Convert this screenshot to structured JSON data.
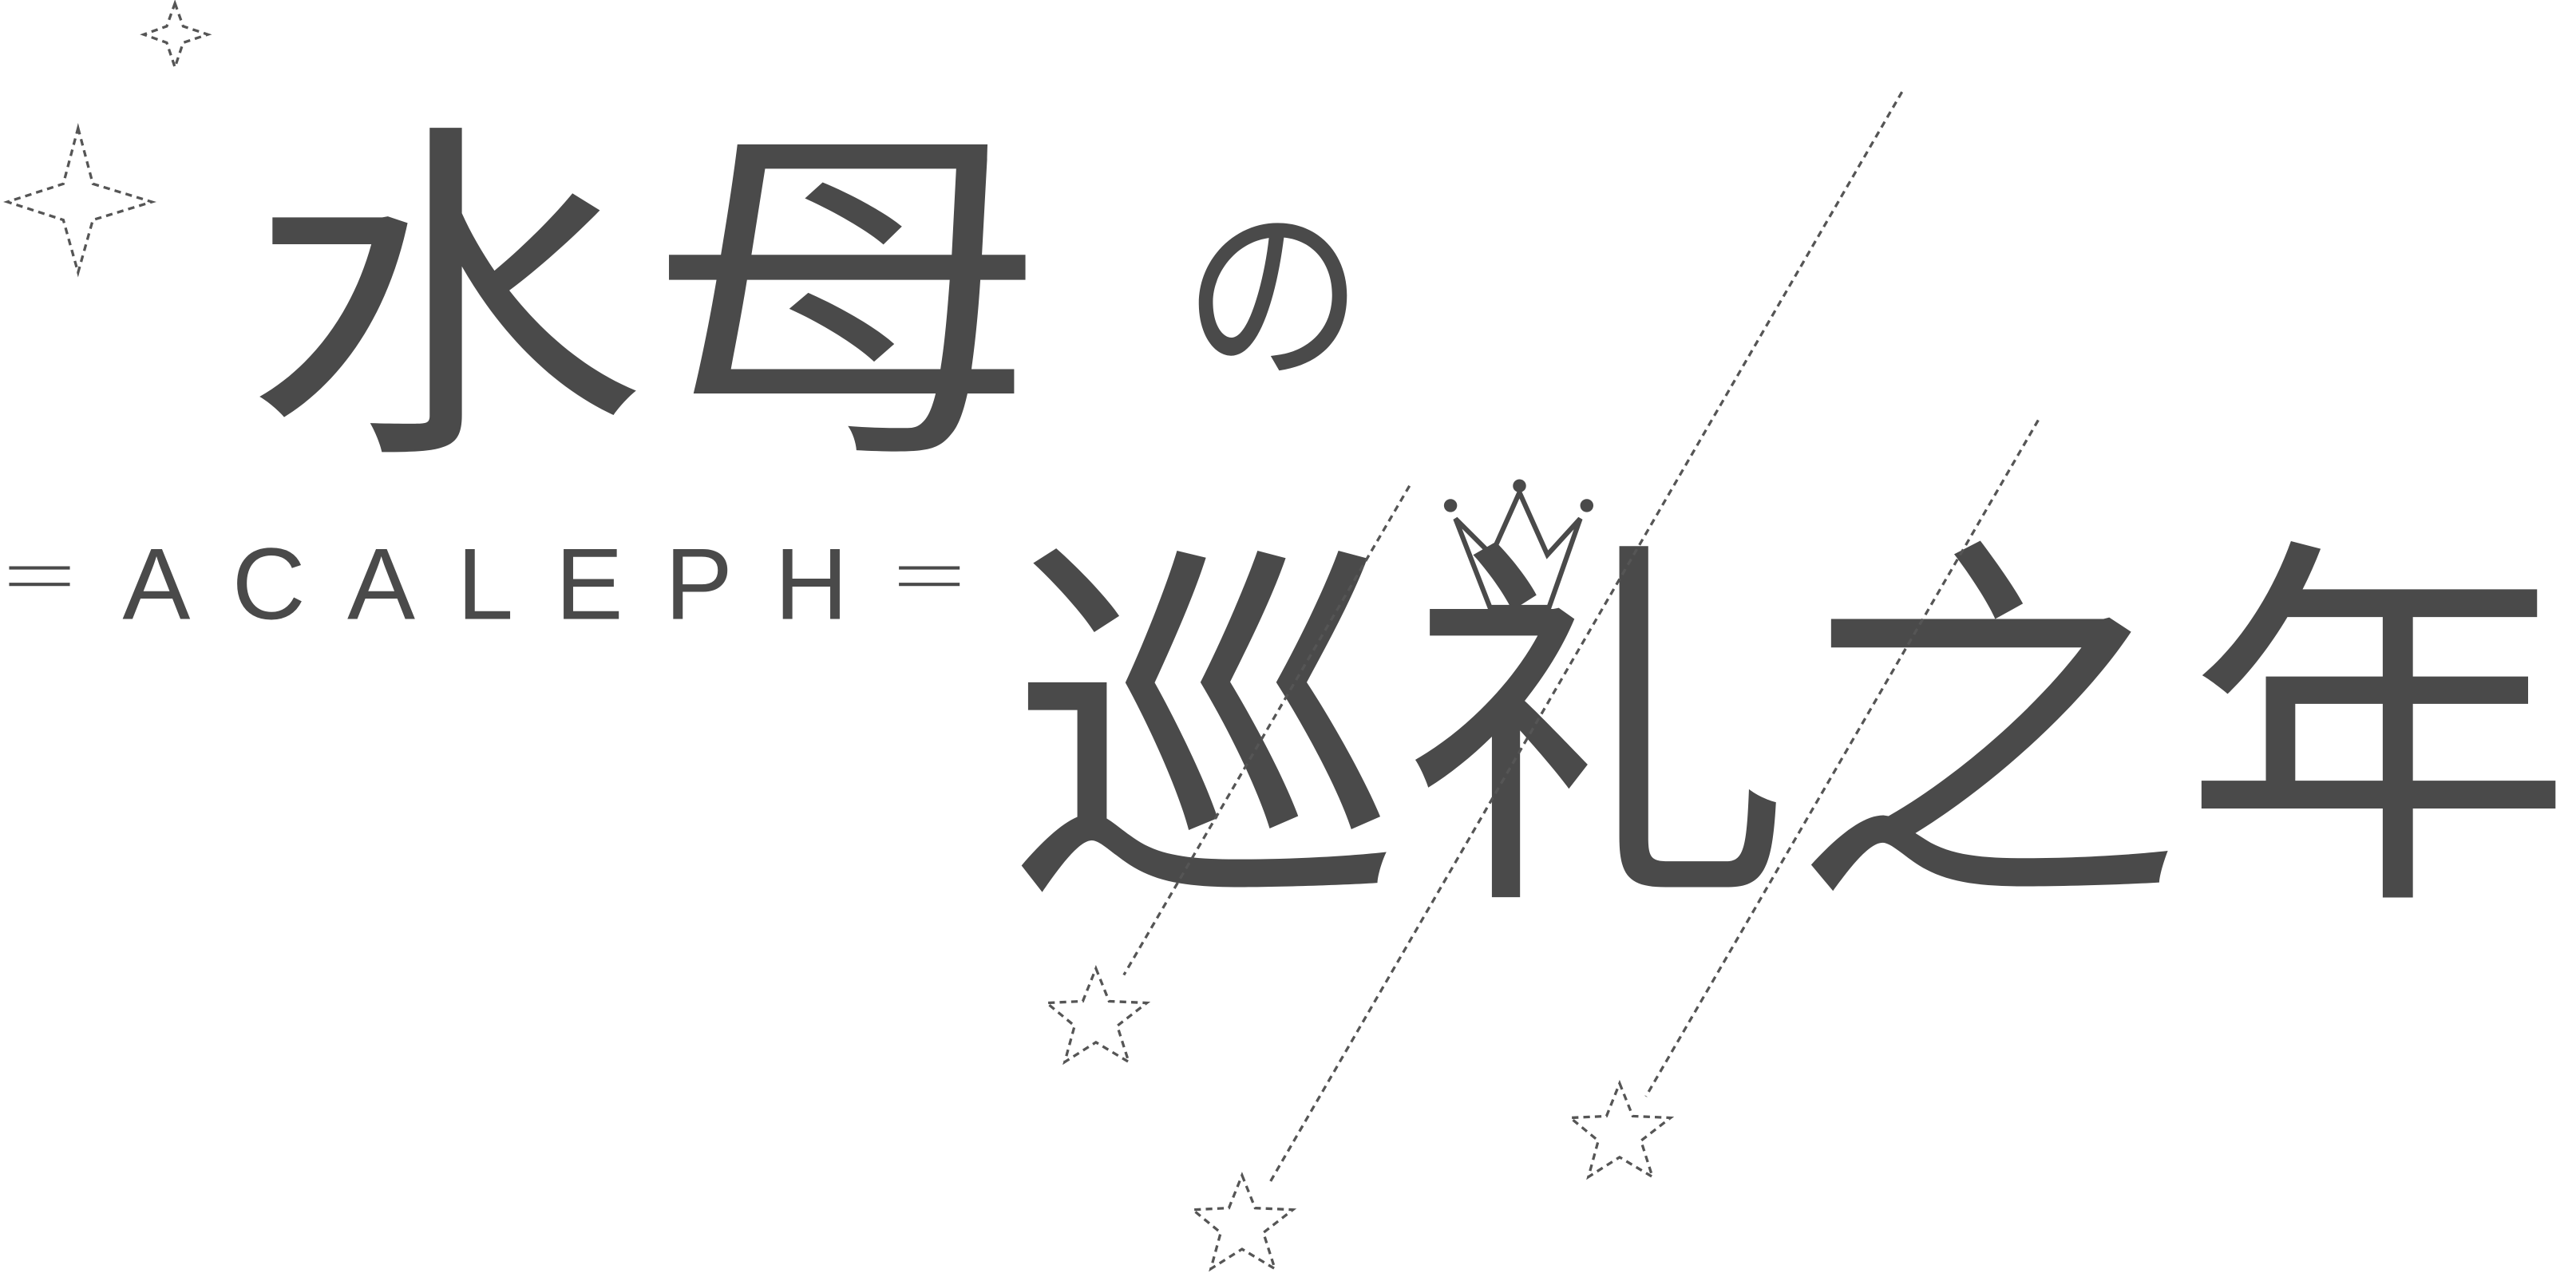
{
  "logo": {
    "title_top": "水母",
    "title_particle": "の",
    "title_bottom": "巡礼之年",
    "subtitle": "ACALEPH"
  }
}
